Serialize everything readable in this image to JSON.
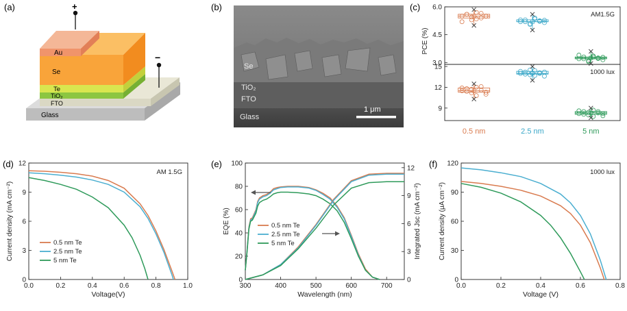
{
  "panels": {
    "a": {
      "label": "(a)",
      "layers": [
        "Au",
        "Se",
        "Te",
        "TiO₂",
        "FTO",
        "Glass"
      ],
      "plus": "+",
      "minus": "−",
      "colors": {
        "au": "#f2a27e",
        "se": "#f9ab47",
        "te": "#d9e64f",
        "tio2": "#8cc641",
        "fto": "#dedccb",
        "glass": "#c8c8c8"
      }
    },
    "b": {
      "label": "(b)",
      "layers": [
        "Se",
        "TiO₂",
        "FTO",
        "Glass"
      ],
      "scalebar": "1 μm"
    },
    "c": {
      "label": "(c)"
    },
    "d": {
      "label": "(d)"
    },
    "e": {
      "label": "(e)"
    },
    "f": {
      "label": "(f)"
    }
  },
  "chart_data": [
    {
      "panel": "c-top",
      "type": "scatter",
      "title": "",
      "xlabel": "",
      "ylabel": "PCE (%)",
      "annotation": "AM1.5G",
      "categories": [
        "0.5 nm",
        "2.5 nm",
        "5 nm"
      ],
      "ylim": [
        2.9,
        6.0
      ],
      "yticks": [
        "3.0",
        "4.5",
        "6.0"
      ],
      "colors": [
        "#d97b4f",
        "#3aa7c8",
        "#2e9a5a"
      ],
      "series": [
        {
          "values": [
            5.5,
            5.6,
            5.3,
            5.7,
            5.4,
            5.5,
            5.2,
            5.6,
            5.45,
            5.35,
            5.65,
            5.5
          ],
          "mean": 5.5,
          "max": 5.85,
          "min": 5.0
        },
        {
          "values": [
            5.2,
            5.3,
            5.1,
            5.35,
            5.25,
            5.15,
            5.3,
            5.2,
            5.05,
            5.4,
            5.22,
            5.28
          ],
          "mean": 5.2,
          "max": 5.6,
          "min": 4.75
        },
        {
          "values": [
            3.2,
            3.3,
            3.1,
            3.35,
            3.25,
            3.15,
            3.4,
            3.2,
            3.05,
            3.3,
            3.22,
            3.28
          ],
          "mean": 3.25,
          "max": 3.6,
          "min": 2.95
        }
      ]
    },
    {
      "panel": "c-bottom",
      "type": "scatter",
      "title": "",
      "xlabel": "",
      "ylabel": "",
      "annotation": "1000 lux",
      "categories": [
        "0.5 nm",
        "2.5 nm",
        "5 nm"
      ],
      "ylim": [
        7.2,
        15.3
      ],
      "yticks": [
        "9",
        "12",
        "15"
      ],
      "colors": [
        "#d97b4f",
        "#3aa7c8",
        "#2e9a5a"
      ],
      "series": [
        {
          "values": [
            11.5,
            11.8,
            11.2,
            12.0,
            11.6,
            11.0,
            11.9,
            11.4,
            11.7,
            10.8,
            12.1,
            11.3
          ],
          "mean": 11.5,
          "max": 12.5,
          "min": 10.3
        },
        {
          "values": [
            14.0,
            14.2,
            13.8,
            14.4,
            14.1,
            13.6,
            14.3,
            13.9,
            14.5,
            13.7,
            14.0,
            14.2
          ],
          "mean": 14.0,
          "max": 15.0,
          "min": 13.0
        },
        {
          "values": [
            8.2,
            8.5,
            8.0,
            8.7,
            8.3,
            7.9,
            8.6,
            8.1,
            8.4,
            7.8,
            8.5,
            8.2
          ],
          "mean": 8.3,
          "max": 9.0,
          "min": 7.6
        }
      ]
    },
    {
      "panel": "d",
      "type": "line",
      "title": "",
      "xlabel": "Voltage(V)",
      "ylabel": "Current density (mA cm⁻²)",
      "annotation": "AM 1.5G",
      "xlim": [
        0,
        1.0
      ],
      "ylim": [
        0,
        12
      ],
      "xticks": [
        "0.0",
        "0.2",
        "0.4",
        "0.6",
        "0.8",
        "1.0"
      ],
      "yticks": [
        "0",
        "3",
        "6",
        "9",
        "12"
      ],
      "legend_position": "bottom-left",
      "series": [
        {
          "name": "0.5 nm Te",
          "color": "#d97b4f",
          "x": [
            0,
            0.1,
            0.2,
            0.3,
            0.4,
            0.5,
            0.6,
            0.7,
            0.75,
            0.8,
            0.85,
            0.9,
            0.92
          ],
          "y": [
            11.2,
            11.15,
            11.05,
            10.9,
            10.65,
            10.2,
            9.4,
            7.8,
            6.6,
            5.0,
            3.1,
            0.9,
            0
          ]
        },
        {
          "name": "2.5 nm Te",
          "color": "#4aaed0",
          "x": [
            0,
            0.1,
            0.2,
            0.3,
            0.4,
            0.5,
            0.6,
            0.7,
            0.75,
            0.8,
            0.85,
            0.9,
            0.91
          ],
          "y": [
            11.0,
            10.9,
            10.75,
            10.55,
            10.25,
            9.8,
            9.0,
            7.5,
            6.3,
            4.7,
            2.8,
            0.5,
            0
          ]
        },
        {
          "name": "5 nm Te",
          "color": "#2e9a5a",
          "x": [
            0,
            0.1,
            0.2,
            0.3,
            0.4,
            0.5,
            0.6,
            0.65,
            0.7,
            0.73,
            0.75
          ],
          "y": [
            10.5,
            10.2,
            9.8,
            9.3,
            8.5,
            7.4,
            5.6,
            4.3,
            2.5,
            1.1,
            0
          ]
        }
      ]
    },
    {
      "panel": "e",
      "type": "line",
      "title": "",
      "xlabel": "Wavelength (nm)",
      "ylabel": "EQE (%)",
      "ylabel_right": "Integrated Jsc (mA cm⁻²)",
      "xlim": [
        300,
        750
      ],
      "ylim": [
        0,
        100
      ],
      "ylim_right": [
        0,
        12.5
      ],
      "xticks": [
        "300",
        "400",
        "500",
        "600",
        "700"
      ],
      "yticks": [
        "0",
        "20",
        "40",
        "60",
        "80",
        "100"
      ],
      "yticks_right": [
        "0",
        "3",
        "6",
        "9",
        "12"
      ],
      "legend_position": "bottom-left",
      "series": [
        {
          "name": "0.5 nm Te",
          "color": "#d97b4f",
          "x": [
            300,
            305,
            310,
            315,
            320,
            330,
            335,
            340,
            350,
            360,
            370,
            380,
            390,
            400,
            420,
            450,
            480,
            500,
            520,
            540,
            560,
            580,
            600,
            620,
            640,
            660,
            680
          ],
          "y": [
            8,
            25,
            45,
            52,
            53,
            60,
            67,
            70,
            72,
            73,
            75,
            78,
            79,
            79.5,
            80,
            80,
            79,
            77,
            74,
            70,
            63,
            53,
            38,
            22,
            9,
            2,
            0
          ]
        },
        {
          "name": "2.5 nm Te",
          "color": "#4aaed0",
          "x": [
            300,
            305,
            310,
            315,
            320,
            330,
            335,
            340,
            350,
            360,
            370,
            380,
            390,
            400,
            420,
            450,
            480,
            500,
            520,
            540,
            560,
            580,
            600,
            620,
            640,
            660,
            680
          ],
          "y": [
            8,
            25,
            44,
            51,
            52,
            59,
            66,
            69,
            71,
            72,
            74,
            77,
            78,
            79,
            79.5,
            79.5,
            78.5,
            76.5,
            73,
            69,
            62,
            52,
            37,
            21,
            8,
            2,
            0
          ]
        },
        {
          "name": "5 nm Te",
          "color": "#2e9a5a",
          "x": [
            300,
            305,
            310,
            315,
            320,
            330,
            335,
            340,
            350,
            360,
            370,
            380,
            390,
            400,
            420,
            450,
            480,
            500,
            520,
            540,
            560,
            580,
            600,
            620,
            640,
            660,
            680
          ],
          "y": [
            8,
            24,
            43,
            50,
            51,
            57,
            63,
            66,
            68,
            69,
            71,
            73.5,
            74.5,
            75,
            75,
            74.5,
            73.5,
            72,
            69,
            65,
            59,
            49,
            35,
            20,
            8,
            2,
            0
          ]
        }
      ],
      "integrated": [
        {
          "name": "0.5 nm Te",
          "color": "#d97b4f",
          "x": [
            300,
            350,
            400,
            450,
            500,
            550,
            600,
            650,
            700,
            750
          ],
          "y": [
            0,
            0.5,
            1.6,
            3.5,
            5.9,
            8.6,
            10.6,
            11.3,
            11.4,
            11.4
          ]
        },
        {
          "name": "2.5 nm Te",
          "color": "#4aaed0",
          "x": [
            300,
            350,
            400,
            450,
            500,
            550,
            600,
            650,
            700,
            750
          ],
          "y": [
            0,
            0.5,
            1.6,
            3.4,
            5.8,
            8.5,
            10.5,
            11.2,
            11.3,
            11.3
          ]
        },
        {
          "name": "5 nm Te",
          "color": "#2e9a5a",
          "x": [
            300,
            350,
            400,
            450,
            500,
            550,
            600,
            650,
            700,
            750
          ],
          "y": [
            0,
            0.5,
            1.5,
            3.3,
            5.5,
            8.0,
            9.8,
            10.4,
            10.5,
            10.5
          ]
        }
      ]
    },
    {
      "panel": "f",
      "type": "line",
      "title": "",
      "xlabel": "Voltage (V)",
      "ylabel": "Current density (μA cm⁻²)",
      "annotation": "1000 lux",
      "xlim": [
        0,
        0.8
      ],
      "ylim": [
        0,
        120
      ],
      "xticks": [
        "0.0",
        "0.2",
        "0.4",
        "0.6",
        "0.8"
      ],
      "yticks": [
        "0",
        "30",
        "60",
        "90",
        "120"
      ],
      "series": [
        {
          "name": "0.5 nm Te",
          "color": "#d97b4f",
          "x": [
            0,
            0.1,
            0.2,
            0.3,
            0.4,
            0.5,
            0.55,
            0.6,
            0.65,
            0.7,
            0.72
          ],
          "y": [
            101,
            99,
            96,
            92,
            86,
            76,
            68,
            56,
            38,
            12,
            0
          ]
        },
        {
          "name": "2.5 nm Te",
          "color": "#4aaed0",
          "x": [
            0,
            0.1,
            0.2,
            0.3,
            0.4,
            0.5,
            0.55,
            0.6,
            0.65,
            0.7,
            0.73
          ],
          "y": [
            115,
            113,
            110,
            106,
            99,
            88,
            79,
            66,
            47,
            20,
            0
          ]
        },
        {
          "name": "5 nm Te",
          "color": "#2e9a5a",
          "x": [
            0,
            0.1,
            0.2,
            0.3,
            0.4,
            0.45,
            0.5,
            0.55,
            0.6,
            0.62
          ],
          "y": [
            99,
            95,
            89,
            80,
            66,
            56,
            43,
            27,
            8,
            0
          ]
        }
      ]
    }
  ]
}
